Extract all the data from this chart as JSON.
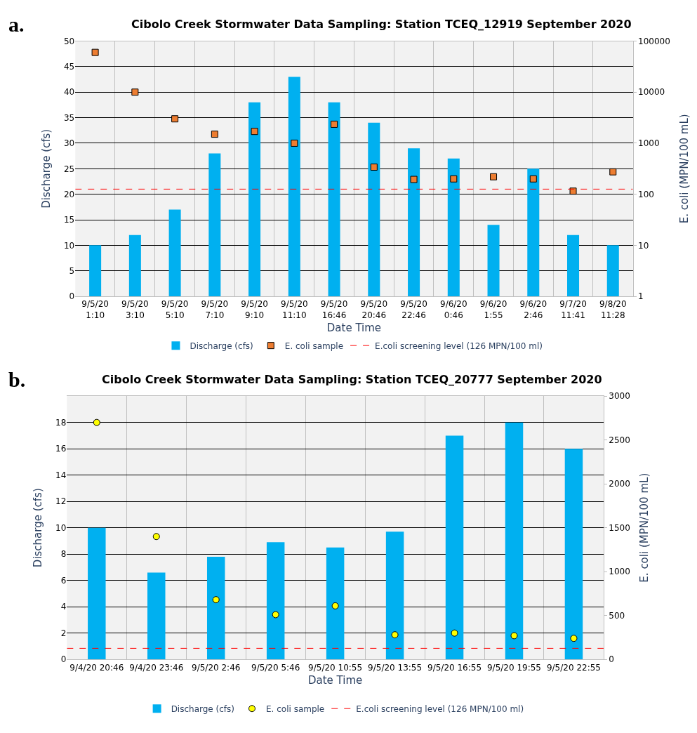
{
  "chart_data": [
    {
      "type": "bar",
      "title": "Cibolo Creek Stormwater Data Sampling: Station TCEQ_12919 September 2020",
      "annotations": [
        "a."
      ],
      "categories": [
        "9/5/20\n1:10",
        "9/5/20\n3:10",
        "9/5/20\n5:10",
        "9/5/20\n7:10",
        "9/5/20\n9:10",
        "9/5/20\n11:10",
        "9/5/20\n16:46",
        "9/5/20\n20:46",
        "9/5/20\n22:46",
        "9/6/20\n0:46",
        "9/6/20\n1:55",
        "9/6/20\n2:46",
        "9/7/20\n11:41",
        "9/8/20\n11:28"
      ],
      "xlabel": "Date Time",
      "ylabel": "Discharge (cfs)",
      "y2label": "E. coli (MPN/100 mL)",
      "ylim": [
        0,
        50
      ],
      "yticks": [
        0,
        5,
        10,
        15,
        20,
        25,
        30,
        35,
        40,
        45,
        50
      ],
      "y2lim": [
        1,
        100000
      ],
      "y2ticks": [
        1,
        10,
        100,
        1000,
        10000,
        100000
      ],
      "log": "y2",
      "grid": true,
      "legend": "bottom",
      "series": [
        {
          "name": "Discharge (cfs)",
          "color": "#00b0f0",
          "values": [
            10,
            12,
            17,
            28,
            38,
            43,
            38,
            34,
            29,
            27,
            14,
            25,
            12,
            10
          ]
        },
        {
          "name": "E. coli sample",
          "type": "scatter",
          "marker": "square",
          "axis": "y2",
          "color": "#ed7d31",
          "values": [
            60000,
            10000,
            3000,
            1500,
            1700,
            1000,
            2350,
            340,
            195,
            200,
            220,
            200,
            115,
            275
          ]
        }
      ],
      "ref_lines": [
        {
          "axis": "y2",
          "value": 126,
          "label": "E.coli screening level (126 MPN/100 ml)",
          "color": "#ff0000",
          "line_style": "dashed"
        }
      ]
    },
    {
      "type": "bar",
      "title": "Cibolo Creek Stormwater Data Sampling: Station TCEQ_20777 September 2020",
      "annotations": [
        "b."
      ],
      "categories": [
        "9/4/20 20:46",
        "9/4/20 23:46",
        "9/5/20 2:46",
        "9/5/20 5:46",
        "9/5/20 10:55",
        "9/5/20 13:55",
        "9/5/20 16:55",
        "9/5/20 19:55",
        "9/5/20 22:55"
      ],
      "xlabel": "Date Time",
      "ylabel": "Discharge (cfs)",
      "y2label": "E. coli (MPN/100 mL)",
      "ylim": [
        0,
        20
      ],
      "yticks": [
        0,
        2,
        4,
        6,
        8,
        10,
        12,
        14,
        16,
        18
      ],
      "y2lim": [
        0,
        3000
      ],
      "y2ticks": [
        0,
        500,
        1000,
        1500,
        2000,
        2500,
        3000
      ],
      "grid": true,
      "legend": "bottom",
      "series": [
        {
          "name": "Discharge (cfs)",
          "color": "#00b0f0",
          "values": [
            10,
            6.6,
            7.8,
            8.9,
            8.5,
            9.7,
            17,
            18,
            16
          ]
        },
        {
          "name": "E. coli sample",
          "type": "scatter",
          "marker": "circle",
          "axis": "y2",
          "color": "#ffff00",
          "values": [
            2700,
            1400,
            680,
            510,
            610,
            280,
            300,
            270,
            240
          ]
        }
      ],
      "ref_lines": [
        {
          "axis": "y2",
          "value": 126,
          "label": "E.coli screening level (126 MPN/100 ml)",
          "color": "#ff0000",
          "line_style": "dashed"
        }
      ]
    }
  ]
}
